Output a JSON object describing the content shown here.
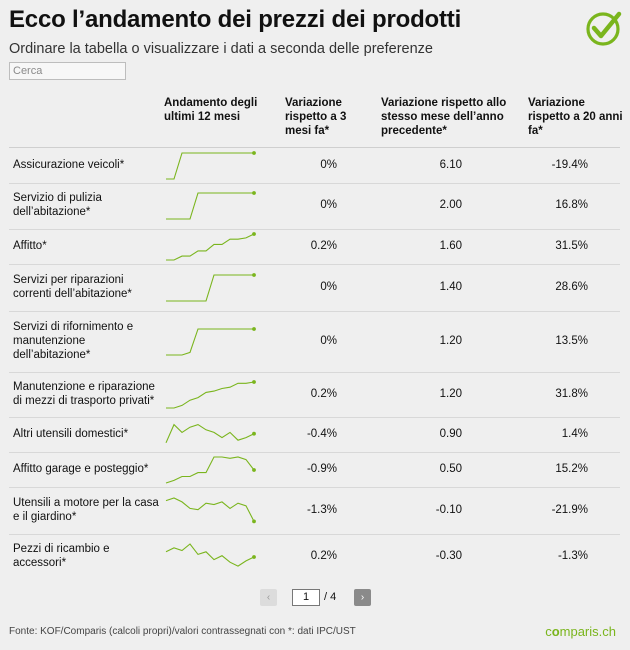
{
  "header": {
    "title": "Ecco l’andamento dei prezzi dei prodotti",
    "subtitle": "Ordinare la tabella o visualizzare i dati a seconda delle preferenze",
    "logo_icon": "checkmark-circle-icon",
    "accent": "#7ab51d"
  },
  "search": {
    "placeholder": "Cerca",
    "value": ""
  },
  "table": {
    "columns": [
      "Andamento degli ultimi 12 mesi",
      "Variazione rispetto a 3 mesi fa*",
      "Variazione rispetto allo stesso mese dell’anno precedente*",
      "Variazione rispetto a 20 anni fa*"
    ],
    "rows": [
      {
        "name": "Assicurazione veicoli*",
        "trend": [
          0,
          0,
          1,
          1,
          1,
          1,
          1,
          1,
          1,
          1,
          1,
          1
        ],
        "v3m": "0%",
        "vyear": "6.10",
        "v20y": "-19.4%"
      },
      {
        "name": "Servizio di pulizia dell’abitazione*",
        "trend": [
          0,
          0,
          0,
          0,
          1,
          1,
          1,
          1,
          1,
          1,
          1,
          1
        ],
        "v3m": "0%",
        "vyear": "2.00",
        "v20y": "16.8%"
      },
      {
        "name": "Affitto*",
        "trend": [
          0,
          0,
          0.15,
          0.15,
          0.35,
          0.35,
          0.6,
          0.6,
          0.8,
          0.8,
          0.85,
          1
        ],
        "v3m": "0.2%",
        "vyear": "1.60",
        "v20y": "31.5%"
      },
      {
        "name": "Servizi per riparazioni correnti dell’abitazione*",
        "trend": [
          0,
          0,
          0,
          0,
          0,
          0,
          1,
          1,
          1,
          1,
          1,
          1
        ],
        "v3m": "0%",
        "vyear": "1.40",
        "v20y": "28.6%"
      },
      {
        "name": "Servizi di rifornimento e manutenzione dell’abitazione*",
        "trend": [
          0,
          0,
          0,
          0.1,
          1,
          1,
          1,
          1,
          1,
          1,
          1,
          1
        ],
        "v3m": "0%",
        "vyear": "1.20",
        "v20y": "13.5%"
      },
      {
        "name": "Manutenzione e riparazione di mezzi di trasporto privati*",
        "trend": [
          0,
          0,
          0.1,
          0.3,
          0.4,
          0.6,
          0.65,
          0.75,
          0.8,
          0.95,
          0.95,
          1
        ],
        "v3m": "0.2%",
        "vyear": "1.20",
        "v20y": "31.8%"
      },
      {
        "name": "Altri utensili domestici*",
        "trend": [
          0.2,
          0.9,
          0.6,
          0.8,
          0.9,
          0.7,
          0.6,
          0.4,
          0.6,
          0.3,
          0.4,
          0.55
        ],
        "v3m": "-0.4%",
        "vyear": "0.90",
        "v20y": "1.4%"
      },
      {
        "name": "Affitto garage e posteggio*",
        "trend": [
          0,
          0.1,
          0.25,
          0.25,
          0.4,
          0.4,
          1,
          1,
          0.95,
          1,
          0.9,
          0.5
        ],
        "v3m": "-0.9%",
        "vyear": "0.50",
        "v20y": "15.2%"
      },
      {
        "name": "Utensili a motore per la casa e il giardino*",
        "trend": [
          0.9,
          1,
          0.85,
          0.6,
          0.55,
          0.8,
          0.75,
          0.85,
          0.6,
          0.8,
          0.7,
          0.1
        ],
        "v3m": "-1.3%",
        "vyear": "-0.10",
        "v20y": "-21.9%"
      },
      {
        "name": "Pezzi di ricambio e accessori*",
        "trend": [
          0.7,
          0.85,
          0.75,
          1,
          0.6,
          0.7,
          0.4,
          0.55,
          0.3,
          0.15,
          0.35,
          0.5
        ],
        "v3m": "0.2%",
        "vyear": "-0.30",
        "v20y": "-1.3%"
      }
    ]
  },
  "pagination": {
    "prev_icon": "chevron-left-icon",
    "next_icon": "chevron-right-icon",
    "prev_label": "‹",
    "next_label": "›",
    "current": "1",
    "total": "/ 4"
  },
  "footer": {
    "source": "Fonte: KOF/Comparis (calcoli propri)/valori contrassegnati con *: dati IPC/UST",
    "brand_pre": "c",
    "brand_dot": "o",
    "brand_post": "mparis.ch"
  }
}
